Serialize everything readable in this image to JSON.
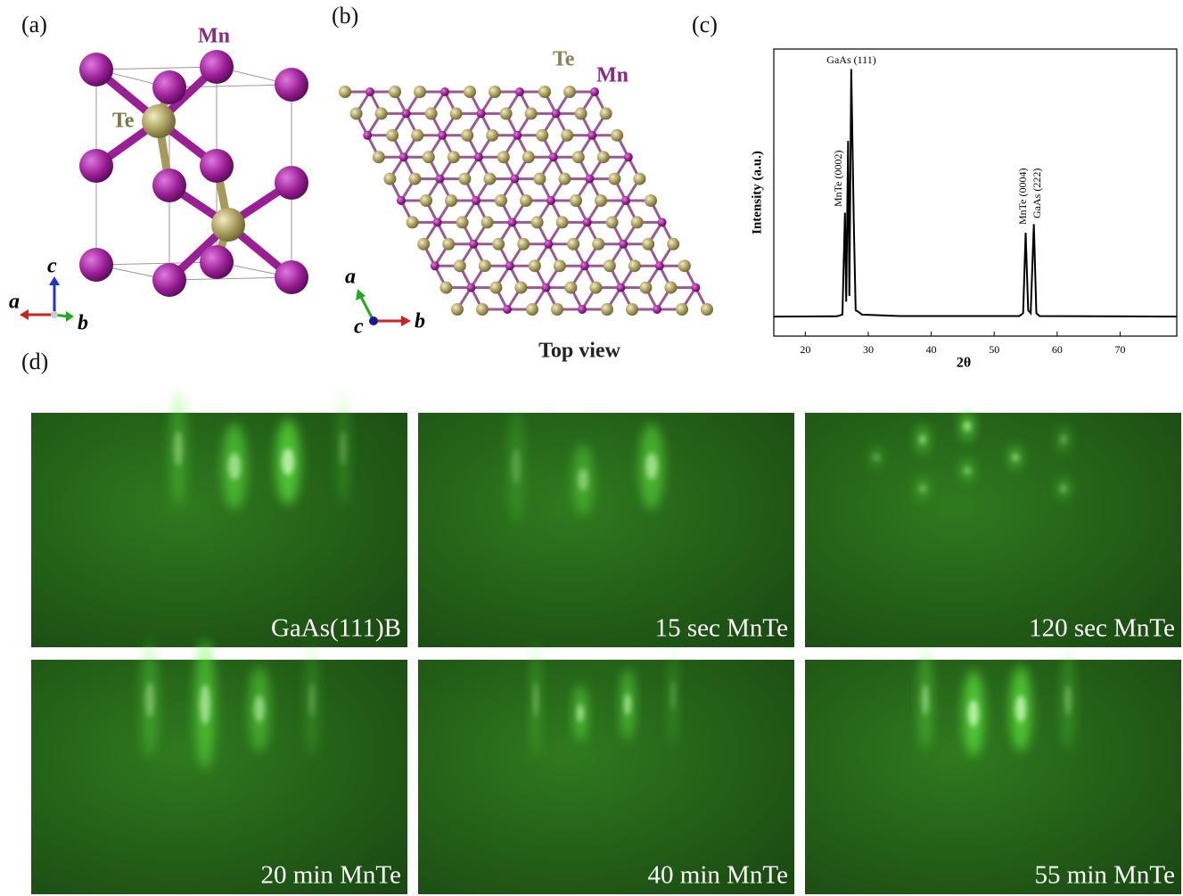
{
  "panels": {
    "a": {
      "label": "(a)",
      "atoms": [
        "Mn",
        "Te"
      ],
      "axes": [
        "c",
        "a",
        "b"
      ]
    },
    "b": {
      "label": "(b)",
      "atoms": [
        "Te",
        "Mn"
      ],
      "axes": [
        "a",
        "c",
        "b"
      ],
      "caption": "Top view"
    },
    "c": {
      "label": "(c)"
    },
    "d": {
      "label": "(d)",
      "images": [
        "GaAs(111)B",
        "15 sec MnTe",
        "120 sec MnTe",
        "20 min MnTe",
        "40 min MnTe",
        "55 min MnTe"
      ]
    }
  },
  "chart_data": {
    "type": "line",
    "xlabel": "2θ",
    "ylabel": "Intensity (a.u.)",
    "annotations": [
      "GaAs (111)",
      "MnTe (0002)",
      "MnTe (0004)",
      "GaAs (222)"
    ],
    "x": [
      15,
      25,
      25.9,
      26.3,
      26.5,
      26.8,
      27.0,
      27.3,
      27.7,
      28.0,
      28.4,
      29,
      35,
      54,
      54.6,
      55.0,
      55.4,
      55.8,
      56.3,
      56.7,
      57.2,
      79
    ],
    "values": [
      6.8,
      6.9,
      7.5,
      43,
      12,
      68,
      14,
      93,
      40,
      9,
      8.5,
      7.5,
      7,
      7,
      8,
      36,
      9,
      8,
      39,
      8,
      7,
      6.8
    ],
    "color": "#000000",
    "xlim": [
      15,
      79
    ],
    "ylim": [
      0,
      100
    ],
    "xticks": [
      20,
      30,
      40,
      50,
      60,
      70
    ]
  }
}
